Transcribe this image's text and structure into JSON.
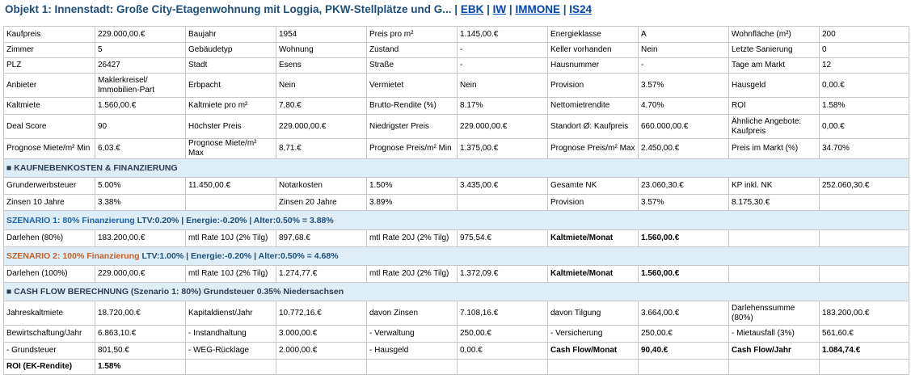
{
  "header": {
    "title": "Objekt 1: Innenstadt: Große City-Etagenwohnung mit Loggia, PKW-Stellplätze und G...",
    "separator": "|",
    "links": [
      "EBK",
      "IW",
      "IMMONE",
      "IS24"
    ]
  },
  "rows": [
    [
      "Kaufpreis",
      "229.000,00.€",
      "Baujahr",
      "1954",
      "Preis pro m²",
      "1.145,00.€",
      "Energieklasse",
      "A",
      "Wohnfläche (m²)",
      "200"
    ],
    [
      "Zimmer",
      "5",
      "Gebäudetyp",
      "Wohnung",
      "Zustand",
      "-",
      "Keller vorhanden",
      "Nein",
      "Letzte Sanierung",
      "0"
    ],
    [
      "PLZ",
      "26427",
      "Stadt",
      "Esens",
      "Straße",
      "-",
      "Hausnummer",
      "-",
      "Tage am Markt",
      "12"
    ],
    [
      "Anbieter",
      "Maklerkreisel/ Immobilien-Part",
      "Erbpacht",
      "Nein",
      "Vermietet",
      "Nein",
      "Provision",
      "3.57%",
      "Hausgeld",
      "0,00.€"
    ],
    [
      "Kaltmiete",
      "1.560,00.€",
      "Kaltmiete pro m²",
      "7,80.€",
      "Brutto-Rendite (%)",
      "8.17%",
      "Nettomietrendite",
      "4.70%",
      "ROI",
      "1.58%"
    ],
    [
      "Deal Score",
      "90",
      "Höchster Preis",
      "229.000,00.€",
      "Niedrigster Preis",
      "229.000,00.€",
      "Standort Ø: Kaufpreis",
      "660.000,00.€",
      "Ähnliche Angebote: Kaufpreis",
      "0,00.€"
    ],
    [
      "Prognose Miete/m² Min",
      "6,03.€",
      "Prognose Miete/m² Max",
      "8,71.€",
      "Prognose Preis/m² Min",
      "1.375,00.€",
      "Prognose Preis/m² Max",
      "2.450,00.€",
      "Preis im Markt (%)",
      "34.70%"
    ]
  ],
  "nebenkosten": {
    "heading": "■ KAUFNEBENKOSTEN & FINANZIERUNG",
    "rows": [
      [
        "Grunderwerbsteuer",
        "5.00%",
        "11.450,00.€",
        "Notarkosten",
        "1.50%",
        "3.435,00.€",
        "Gesamte NK",
        "23.060,30.€",
        "KP inkl. NK",
        "252.060,30.€"
      ],
      [
        "Zinsen 10 Jahre",
        "3.38%",
        "",
        "Zinsen 20 Jahre",
        "3.89%",
        "",
        "Provision",
        "3.57%",
        "8.175,30.€",
        ""
      ]
    ]
  },
  "szenario1": {
    "label": "SZENARIO 1: 80% Finanzierung",
    "details": " LTV:0.20% | Energie:-0.20% | Alter:0.50% = 3.88%",
    "row": [
      "Darlehen (80%)",
      "183.200,00.€",
      "mtl Rate 10J (2% Tilg)",
      "897,68.€",
      "mtl Rate 20J (2% Tilg)",
      "975,54.€",
      "Kaltmiete/Monat",
      "1.560,00.€",
      "",
      ""
    ]
  },
  "szenario2": {
    "label": "SZENARIO 2: 100% Finanzierung",
    "details": " LTV:1.00% | Energie:-0.20% | Alter:0.50% = 4.68%",
    "row": [
      "Darlehen (100%)",
      "229.000,00.€",
      "mtl Rate 10J (2% Tilg)",
      "1.274,77.€",
      "mtl Rate 20J (2% Tilg)",
      "1.372,09.€",
      "Kaltmiete/Monat",
      "1.560,00.€",
      "",
      ""
    ]
  },
  "cashflow": {
    "heading": "■ CASH FLOW BERECHNUNG (Szenario 1: 80%) Grundsteuer 0.35% Niedersachsen",
    "rows": [
      [
        "Jahreskaltmiete",
        "18.720,00.€",
        "Kapitaldienst/Jahr",
        "10.772,16.€",
        "davon Zinsen",
        "7.108,16.€",
        "davon Tilgung",
        "3.664,00.€",
        "Darlehenssumme (80%)",
        "183.200,00.€"
      ],
      [
        "Bewirtschaftung/Jahr",
        "6.863,10.€",
        "- Instandhaltung",
        "3.000,00.€",
        "- Verwaltung",
        "250,00.€",
        "- Versicherung",
        "250,00.€",
        "- Mietausfall (3%)",
        "561,60.€"
      ],
      [
        "- Grundsteuer",
        "801,50.€",
        "- WEG-Rücklage",
        "2.000,00.€",
        "- Hausgeld",
        "0,00.€",
        "Cash Flow/Monat",
        "90,40.€",
        "Cash Flow/Jahr",
        "1.084,74.€"
      ],
      [
        "ROI (EK-Rendite)",
        "1.58%",
        "",
        "",
        "",
        "",
        "",
        "",
        "",
        ""
      ]
    ]
  },
  "colors": {
    "title": "#1f4e79",
    "link": "#0645ad",
    "section_bg": "#dfeef6",
    "szenario1": "#1f63a8",
    "szenario2": "#c0602a",
    "border": "#c8c8c8"
  }
}
